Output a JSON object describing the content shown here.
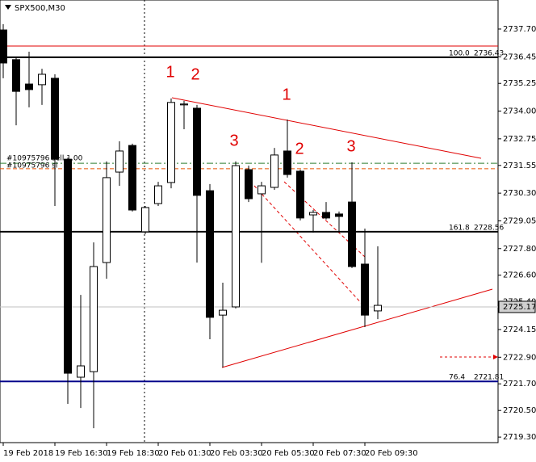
{
  "chart_data": {
    "type": "candlestick",
    "title": "SPX500,M30",
    "categories": [
      "19 Feb 2018",
      null,
      null,
      null,
      "19 Feb 16:30",
      null,
      null,
      null,
      "19 Feb 18:30",
      null,
      null,
      null,
      "20 Feb 01:30",
      null,
      null,
      null,
      "20 Feb 03:30",
      null,
      null,
      null,
      "20 Feb 05:30",
      null,
      null,
      null,
      "20 Feb 07:30",
      null,
      null,
      null,
      "20 Feb 09:30",
      null
    ],
    "open": [
      2737.66,
      2736.32,
      2735.22,
      2735.19,
      2735.48,
      2731.83,
      2722.0,
      2722.25,
      2727.17,
      2731.25,
      2732.45,
      2728.56,
      2729.83,
      2730.78,
      2734.28,
      2734.13,
      2730.41,
      2724.8,
      2725.17,
      2731.36,
      2730.27,
      2730.56,
      2732.2,
      2731.29,
      2729.32,
      2729.43,
      2729.36,
      2729.9,
      2727.1,
      2724.99
    ],
    "high": [
      2737.92,
      2736.46,
      2736.68,
      2735.91,
      2735.66,
      2731.9,
      2725.71,
      2728.08,
      2731.73,
      2732.64,
      2732.53,
      2729.72,
      2730.81,
      2734.57,
      2734.46,
      2734.28,
      2730.71,
      2726.26,
      2731.73,
      2731.54,
      2730.81,
      2732.34,
      2733.62,
      2731.36,
      2729.54,
      2729.9,
      2729.47,
      2731.69,
      2728.7,
      2727.9
    ],
    "low": [
      2735.48,
      2733.36,
      2734.17,
      2734.28,
      2729.72,
      2720.8,
      2720.61,
      2719.7,
      2726.44,
      2730.63,
      2729.47,
      2728.45,
      2729.72,
      2730.52,
      2733.18,
      2727.17,
      2723.71,
      2722.44,
      2725.1,
      2729.9,
      2727.16,
      2730.45,
      2731.0,
      2729.07,
      2728.52,
      2729.11,
      2728.52,
      2726.92,
      2724.26,
      2724.62
    ],
    "close": [
      2736.17,
      2734.89,
      2734.97,
      2735.66,
      2731.83,
      2722.18,
      2722.51,
      2726.99,
      2731.0,
      2732.2,
      2729.54,
      2729.65,
      2730.63,
      2734.39,
      2734.32,
      2730.2,
      2724.7,
      2725.02,
      2731.54,
      2730.05,
      2730.63,
      2732.02,
      2731.14,
      2729.18,
      2729.43,
      2729.18,
      2729.25,
      2726.99,
      2724.8,
      2725.24
    ],
    "up_color": "#ffffff",
    "down_color": "#000000",
    "ylim": [
      2719.05,
      2739.01
    ],
    "yticks": [
      {
        "value": 2737.7,
        "label": "2737.70"
      },
      2736.45,
      2735.25,
      {
        "value": 2734,
        "label": "2734.00"
      },
      2732.75,
      2731.55,
      {
        "value": 2730.3,
        "label": "2730.30"
      },
      2729.05,
      {
        "value": 2727.8,
        "label": "2727.80"
      },
      {
        "value": 2726.6,
        "label": "2726.60"
      },
      {
        "value": 2725.4,
        "label": "2725.40"
      },
      2724.15,
      {
        "value": 2722.9,
        "label": "2722.90"
      },
      {
        "value": 2721.7,
        "label": "2721.70"
      },
      {
        "value": 2720.5,
        "label": "2720.50"
      },
      {
        "value": 2719.3,
        "label": "2719.30"
      }
    ],
    "levels": [
      {
        "name": "100.0",
        "value": 2736.43,
        "color": "#000000"
      },
      {
        "name": "161.8",
        "value": 2728.56,
        "color": "#000000"
      },
      {
        "name": "76.4",
        "value": 2721.81,
        "color": "#00008b"
      }
    ],
    "orders": [
      {
        "label": "#10975796 sell 1.00",
        "value": 2731.65,
        "color": "#2e7d32"
      },
      {
        "label": "#10975796 sl",
        "value": 2731.4,
        "color": "#e65100"
      }
    ],
    "current_price": 2725.17,
    "annotations": [
      "1",
      "2",
      "3",
      "1",
      "2",
      "3"
    ]
  }
}
